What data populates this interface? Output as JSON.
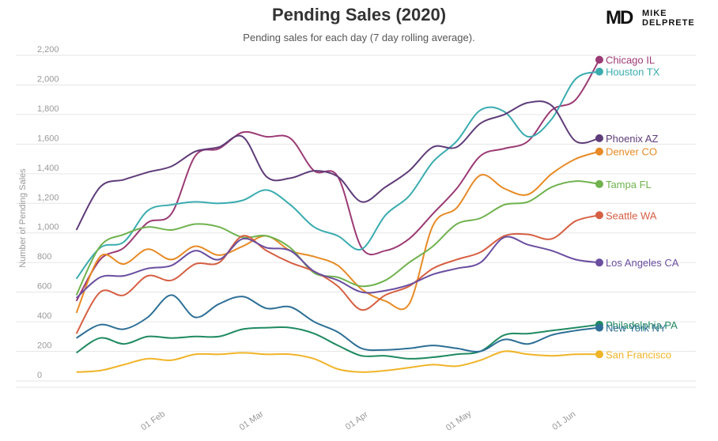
{
  "header": {
    "title": "Pending Sales (2020)",
    "subtitle": "Pending sales for each day (7 day rolling average).",
    "logo_mark": "MD",
    "logo_text": "MIKE\nDELPRETE"
  },
  "chart_data": {
    "type": "line",
    "title": "Pending Sales (2020)",
    "subtitle": "Pending sales for each day (7 day rolling average).",
    "ylabel": "Number of Pending Sales",
    "xlabel": "",
    "ylim": [
      0,
      2200
    ],
    "yticks": [
      0,
      200,
      400,
      600,
      800,
      1000,
      1200,
      1400,
      1600,
      1800,
      2000,
      2200
    ],
    "ytick_labels": [
      "0",
      "200",
      "400",
      "600",
      "800",
      "1,000",
      "1,200",
      "1,400",
      "1,600",
      "1,800",
      "2,000",
      "2,200"
    ],
    "xlim": [
      "2020-01-07",
      "2020-06-18"
    ],
    "xticks": [
      "2020-02-01",
      "2020-03-01",
      "2020-04-01",
      "2020-05-01",
      "2020-06-01"
    ],
    "xtick_labels": [
      "01 Feb",
      "01 Mar",
      "01 Apr",
      "01 May",
      "01 Jun"
    ],
    "grid": true,
    "legend": "end-of-line labels",
    "x": [
      "2020-01-09",
      "2020-01-16",
      "2020-01-23",
      "2020-01-30",
      "2020-02-06",
      "2020-02-13",
      "2020-02-20",
      "2020-02-27",
      "2020-03-05",
      "2020-03-12",
      "2020-03-19",
      "2020-03-26",
      "2020-04-02",
      "2020-04-09",
      "2020-04-16",
      "2020-04-23",
      "2020-04-30",
      "2020-05-07",
      "2020-05-14",
      "2020-05-21",
      "2020-05-28",
      "2020-06-04",
      "2020-06-11"
    ],
    "series": [
      {
        "name": "Chicago IL",
        "color": "#9b3a74",
        "values": [
          540,
          820,
          900,
          1070,
          1130,
          1520,
          1570,
          1680,
          1650,
          1640,
          1420,
          1380,
          900,
          880,
          960,
          1130,
          1300,
          1520,
          1570,
          1620,
          1830,
          1900,
          2170
        ]
      },
      {
        "name": "Houston TX",
        "color": "#3bacb0",
        "values": [
          690,
          900,
          940,
          1150,
          1190,
          1210,
          1200,
          1220,
          1290,
          1190,
          1040,
          980,
          890,
          1120,
          1250,
          1480,
          1620,
          1830,
          1820,
          1650,
          1770,
          2040,
          2090
        ]
      },
      {
        "name": "Phoenix AZ",
        "color": "#5f3c7a",
        "values": [
          1020,
          1310,
          1360,
          1410,
          1450,
          1550,
          1580,
          1650,
          1380,
          1370,
          1420,
          1380,
          1210,
          1310,
          1420,
          1580,
          1580,
          1740,
          1800,
          1880,
          1860,
          1620,
          1640
        ]
      },
      {
        "name": "Denver CO",
        "color": "#e88a25",
        "values": [
          460,
          840,
          790,
          890,
          820,
          910,
          850,
          910,
          980,
          880,
          840,
          780,
          620,
          540,
          520,
          1050,
          1170,
          1390,
          1300,
          1260,
          1400,
          1500,
          1550
        ]
      },
      {
        "name": "Tampa FL",
        "color": "#6fb24e",
        "values": [
          580,
          910,
          990,
          1040,
          1020,
          1060,
          1040,
          970,
          980,
          900,
          730,
          700,
          640,
          680,
          800,
          910,
          1060,
          1100,
          1190,
          1210,
          1310,
          1350,
          1330
        ]
      },
      {
        "name": "Seattle WA",
        "color": "#d65f43",
        "values": [
          320,
          600,
          580,
          710,
          680,
          790,
          800,
          980,
          880,
          800,
          740,
          640,
          480,
          580,
          640,
          760,
          820,
          870,
          980,
          990,
          960,
          1080,
          1120
        ]
      },
      {
        "name": "Los Angeles CA",
        "color": "#6a4ea0",
        "values": [
          560,
          700,
          710,
          760,
          780,
          880,
          820,
          960,
          900,
          880,
          740,
          680,
          600,
          610,
          650,
          720,
          760,
          800,
          970,
          920,
          880,
          820,
          800
        ]
      },
      {
        "name": "Philadelphia PA",
        "color": "#1f8a61",
        "values": [
          190,
          290,
          250,
          300,
          290,
          300,
          300,
          350,
          360,
          360,
          320,
          240,
          170,
          170,
          150,
          160,
          180,
          200,
          310,
          320,
          340,
          360,
          380
        ]
      },
      {
        "name": "New York NY",
        "color": "#2d6f96",
        "values": [
          290,
          380,
          350,
          430,
          580,
          430,
          520,
          570,
          490,
          500,
          400,
          330,
          220,
          210,
          220,
          240,
          220,
          200,
          280,
          250,
          310,
          340,
          360
        ]
      },
      {
        "name": "San Francisco",
        "color": "#f0b429",
        "values": [
          60,
          70,
          110,
          150,
          140,
          180,
          180,
          190,
          180,
          180,
          150,
          80,
          60,
          70,
          90,
          110,
          100,
          140,
          200,
          180,
          170,
          180,
          180
        ]
      }
    ]
  }
}
